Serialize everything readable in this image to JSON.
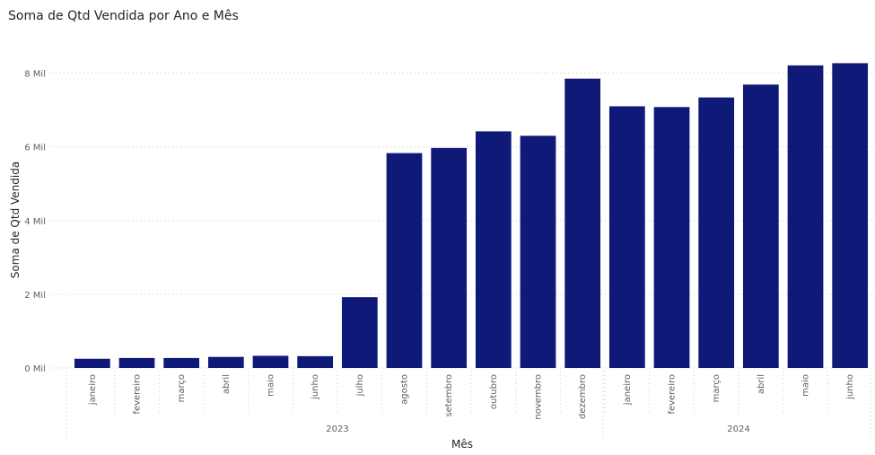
{
  "chart_data": {
    "type": "bar",
    "title": "Soma de Qtd Vendida por Ano e Mês",
    "xlabel": "Mês",
    "ylabel": "Soma de Qtd Vendida",
    "ylim": [
      0,
      8800
    ],
    "y_ticks": [
      {
        "value": 0,
        "label": "0 Mil"
      },
      {
        "value": 2000,
        "label": "2 Mil"
      },
      {
        "value": 4000,
        "label": "4 Mil"
      },
      {
        "value": 6000,
        "label": "6 Mil"
      },
      {
        "value": 8000,
        "label": "8 Mil"
      }
    ],
    "grid": true,
    "color": "#0f1a78",
    "groups": [
      {
        "label": "2023",
        "categories": [
          "janeiro",
          "fevereiro",
          "março",
          "abril",
          "maio",
          "junho",
          "julho",
          "agosto",
          "setembro",
          "outubro",
          "novembro",
          "dezembro"
        ]
      },
      {
        "label": "2024",
        "categories": [
          "janeiro",
          "fevereiro",
          "março",
          "abril",
          "maio",
          "junho"
        ]
      }
    ],
    "categories": [
      "janeiro",
      "fevereiro",
      "março",
      "abril",
      "maio",
      "junho",
      "julho",
      "agosto",
      "setembro",
      "outubro",
      "novembro",
      "dezembro",
      "janeiro",
      "fevereiro",
      "março",
      "abril",
      "maio",
      "junho"
    ],
    "values": [
      250,
      270,
      270,
      300,
      330,
      320,
      1920,
      5830,
      5970,
      6420,
      6300,
      7850,
      7100,
      7080,
      7340,
      7690,
      8210,
      8270
    ]
  }
}
